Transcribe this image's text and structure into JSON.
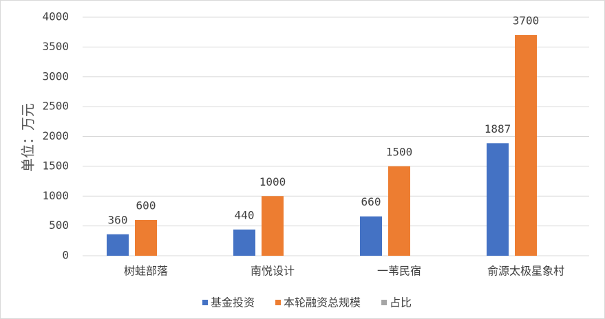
{
  "chart_data": {
    "type": "bar",
    "y_label": "单位：万元",
    "categories": [
      "树蛙部落",
      "南悦设计",
      "一苇民宿",
      "俞源太极星象村"
    ],
    "series": [
      {
        "name": "基金投资",
        "color": "#4472c4",
        "values": [
          360,
          440,
          660,
          1887
        ]
      },
      {
        "name": "本轮融资总规模",
        "color": "#ed7d31",
        "values": [
          600,
          1000,
          1500,
          3700
        ]
      },
      {
        "name": "占比",
        "color": "#a5a5a5",
        "values": [
          null,
          null,
          null,
          null
        ]
      }
    ],
    "ylim": [
      0,
      4000
    ],
    "yticks": [
      0,
      500,
      1000,
      1500,
      2000,
      2500,
      3000,
      3500,
      4000
    ],
    "grid": true,
    "legend": "bottom"
  }
}
